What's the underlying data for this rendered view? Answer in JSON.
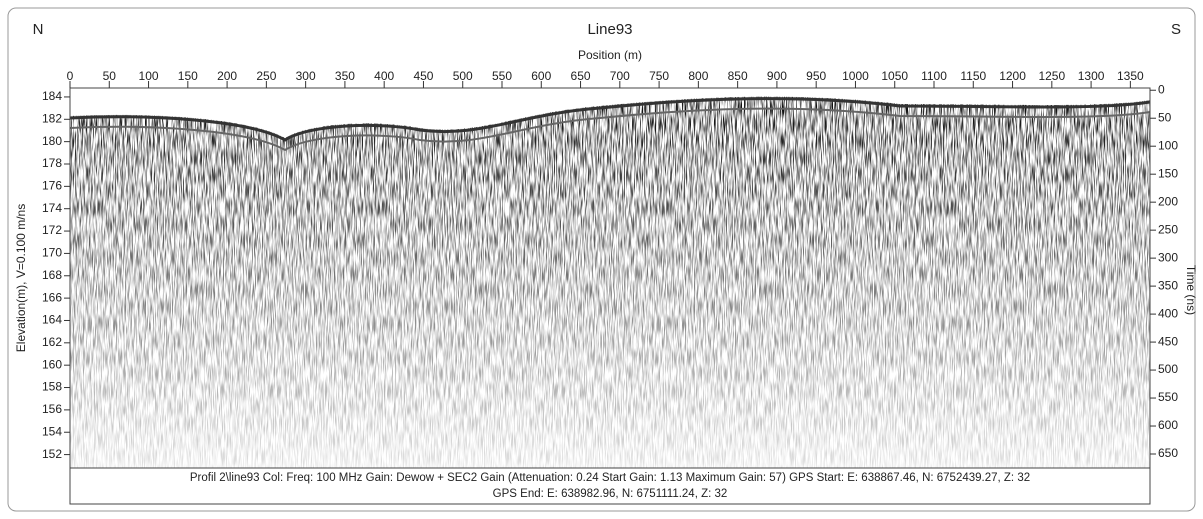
{
  "chart_data": {
    "type": "radargram",
    "title": "Line93",
    "left_corner": "N",
    "right_corner": "S",
    "xlabel": "Position (m)",
    "ylabel": "Elevation(m), V=0.100 m/ns",
    "y2label": "Time (ns)",
    "xlim": [
      0,
      1375
    ],
    "xticks": [
      0,
      50,
      100,
      150,
      200,
      250,
      300,
      350,
      400,
      450,
      500,
      550,
      600,
      650,
      700,
      750,
      800,
      850,
      900,
      950,
      1000,
      1050,
      1100,
      1150,
      1200,
      1250,
      1300,
      1350
    ],
    "ylim": [
      150.8,
      184.8
    ],
    "yticks": [
      152,
      154,
      156,
      158,
      160,
      162,
      164,
      166,
      168,
      170,
      172,
      174,
      176,
      178,
      180,
      182,
      184
    ],
    "y2lim": [
      -4,
      675
    ],
    "y2ticks": [
      0,
      50,
      100,
      150,
      200,
      250,
      300,
      350,
      400,
      450,
      500,
      550,
      600,
      650
    ],
    "footer": [
      "Profil 2\\line93  Col:  Freq: 100 MHz Gain: Dewow + SEC2 Gain (Attenuation: 0.24 Start Gain: 1.13 Maximum Gain: 57) GPS Start: E: 638867.46, N: 6752439.27, Z: 32",
      "GPS End: E: 638982.96, N: 6751111.24, Z: 32"
    ]
  }
}
